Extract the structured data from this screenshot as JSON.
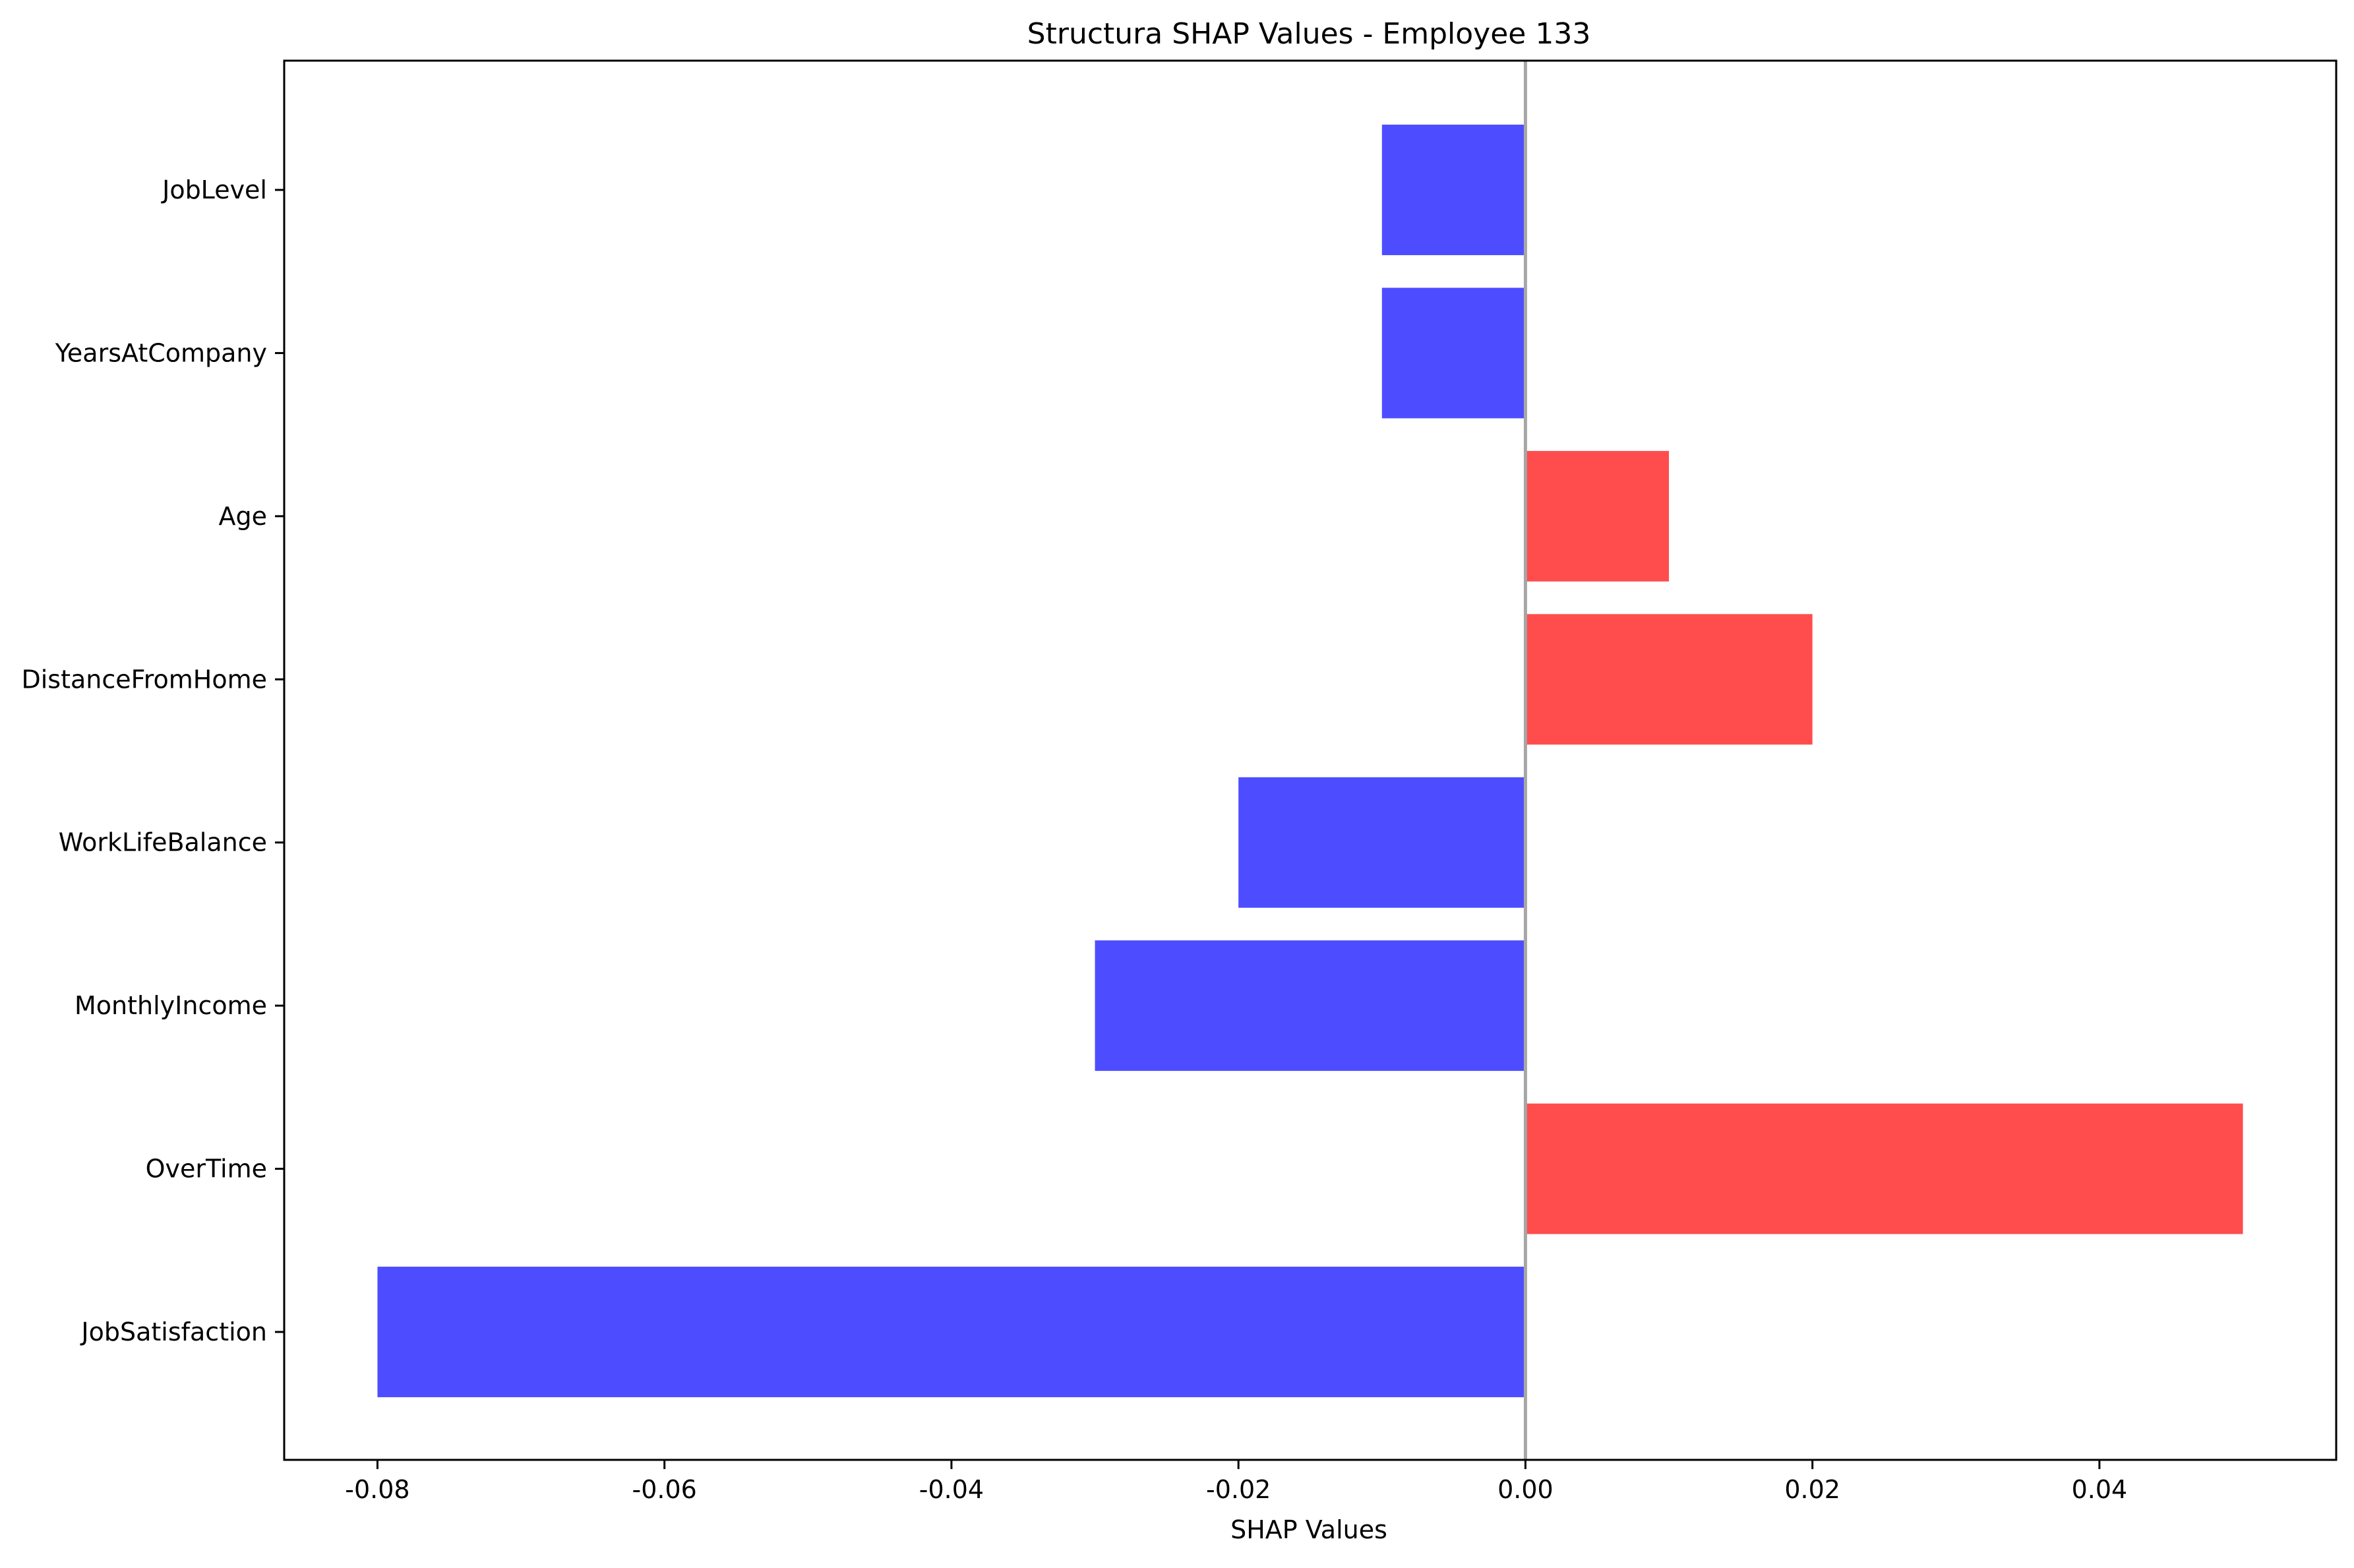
{
  "chart_data": {
    "type": "bar",
    "orientation": "horizontal",
    "title": "Structura SHAP Values - Employee 133",
    "xlabel": "SHAP Values",
    "ylabel": "",
    "categories": [
      "JobSatisfaction",
      "OverTime",
      "MonthlyIncome",
      "WorkLifeBalance",
      "DistanceFromHome",
      "Age",
      "YearsAtCompany",
      "JobLevel"
    ],
    "values": [
      -0.08,
      0.05,
      -0.03,
      -0.02,
      0.02,
      0.01,
      -0.01,
      -0.01
    ],
    "xlim": [
      -0.0865,
      0.0565
    ],
    "xticks": [
      -0.08,
      -0.06,
      -0.04,
      -0.02,
      0.0,
      0.02,
      0.04
    ],
    "xtick_labels": [
      "-0.08",
      "-0.06",
      "-0.04",
      "-0.02",
      "0.00",
      "0.02",
      "0.04"
    ],
    "reference_line_x": 0,
    "grid": false,
    "legend": "none",
    "colors": {
      "positive": "#ff4d4d",
      "negative": "#4d4dff",
      "reference_line": "#a6a6a6",
      "axes": "#000000"
    }
  }
}
